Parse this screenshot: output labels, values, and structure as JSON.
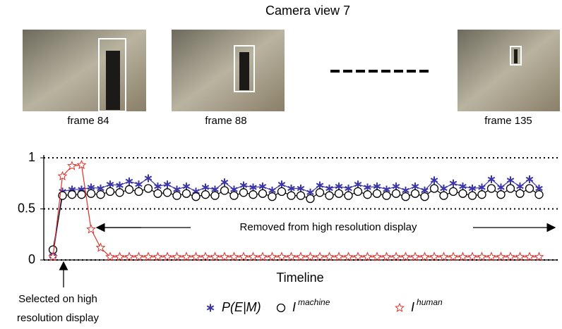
{
  "header": {
    "title": "Camera view 7",
    "frames": [
      "frame 84",
      "frame 88",
      "frame 135"
    ]
  },
  "chart_data": {
    "type": "line",
    "xlabel": "Timeline",
    "categories": [
      null,
      null,
      null,
      null,
      null,
      null,
      null,
      null,
      null,
      null,
      null,
      null,
      null,
      null,
      null,
      null,
      null,
      null,
      null,
      null,
      null,
      null,
      null,
      null,
      null,
      null,
      null,
      null,
      null,
      null,
      null,
      null,
      null,
      null,
      null,
      null,
      null,
      null,
      null,
      null,
      null,
      null,
      null,
      null,
      null,
      null,
      null,
      null,
      null,
      null,
      null,
      null
    ],
    "ylim": [
      0,
      1
    ],
    "yticks": [
      0,
      0.5,
      1
    ],
    "grid": true,
    "series": [
      {
        "name": "P(E|M)",
        "color": "#3b34a6",
        "marker": "asterisk",
        "values": [
          0.04,
          0.67,
          0.69,
          0.69,
          0.71,
          0.7,
          0.74,
          0.73,
          0.77,
          0.74,
          0.8,
          0.72,
          0.74,
          0.69,
          0.72,
          0.67,
          0.71,
          0.69,
          0.76,
          0.69,
          0.73,
          0.71,
          0.72,
          0.68,
          0.74,
          0.7,
          0.7,
          0.66,
          0.73,
          0.7,
          0.72,
          0.7,
          0.74,
          0.71,
          0.72,
          0.69,
          0.72,
          0.68,
          0.72,
          0.68,
          0.78,
          0.7,
          0.75,
          0.72,
          0.7,
          0.71,
          0.79,
          0.71,
          0.78,
          0.72,
          0.79,
          0.7
        ]
      },
      {
        "name": "I",
        "superscript": "machine",
        "color": "#000000",
        "marker": "circle",
        "values": [
          0.1,
          0.63,
          0.64,
          0.64,
          0.65,
          0.64,
          0.67,
          0.66,
          0.69,
          0.67,
          0.7,
          0.65,
          0.66,
          0.63,
          0.65,
          0.62,
          0.64,
          0.63,
          0.68,
          0.63,
          0.66,
          0.64,
          0.65,
          0.62,
          0.67,
          0.63,
          0.63,
          0.6,
          0.66,
          0.63,
          0.65,
          0.63,
          0.67,
          0.64,
          0.65,
          0.63,
          0.65,
          0.62,
          0.65,
          0.62,
          0.7,
          0.63,
          0.67,
          0.65,
          0.63,
          0.64,
          0.7,
          0.64,
          0.7,
          0.65,
          0.7,
          0.64
        ]
      },
      {
        "name": "I",
        "superscript": "human",
        "color": "#e0302a",
        "marker": "star",
        "values": [
          0.03,
          0.82,
          0.92,
          0.93,
          0.3,
          0.12,
          0.03,
          0.03,
          0.03,
          0.03,
          0.03,
          0.03,
          0.03,
          0.03,
          0.03,
          0.03,
          0.03,
          0.03,
          0.03,
          0.03,
          0.03,
          0.03,
          0.03,
          0.03,
          0.03,
          0.03,
          0.03,
          0.03,
          0.03,
          0.03,
          0.03,
          0.03,
          0.03,
          0.03,
          0.03,
          0.03,
          0.03,
          0.03,
          0.03,
          0.03,
          0.03,
          0.03,
          0.03,
          0.03,
          0.03,
          0.03,
          0.03,
          0.03,
          0.03,
          0.03,
          0.03,
          0.03
        ]
      }
    ],
    "annotations": [
      "Removed from high resolution display",
      "Selected on high",
      "resolution display"
    ]
  }
}
